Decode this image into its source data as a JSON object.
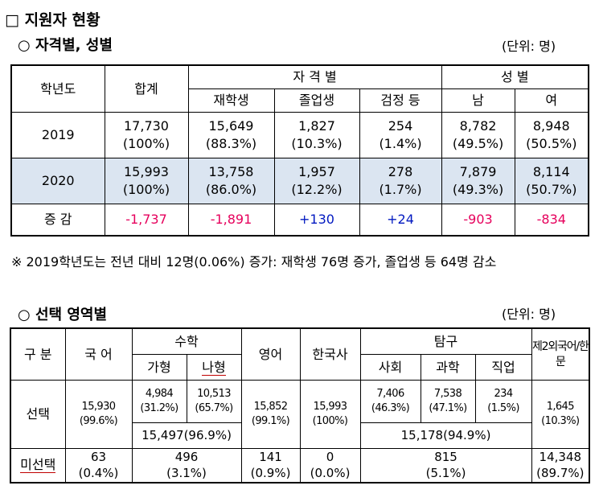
{
  "section_title": "□ 지원자 현황",
  "part1": {
    "heading": "○  자격별, 성별",
    "unit": "(단위: 명)",
    "headers": {
      "year": "학년도",
      "total": "합계",
      "qual_group": "자 격 별",
      "enrolled": "재학생",
      "graduate": "졸업생",
      "ged": "검정 등",
      "gender_group": "성 별",
      "male": "남",
      "female": "여"
    },
    "rows": [
      {
        "year": "2019",
        "total": "17,730",
        "total_pct": "(100%)",
        "enrolled": "15,649",
        "enrolled_pct": "(88.3%)",
        "graduate": "1,827",
        "graduate_pct": "(10.3%)",
        "ged": "254",
        "ged_pct": "(1.4%)",
        "male": "8,782",
        "male_pct": "(49.5%)",
        "female": "8,948",
        "female_pct": "(50.5%)"
      },
      {
        "year": "2020",
        "total": "15,993",
        "total_pct": "(100%)",
        "enrolled": "13,758",
        "enrolled_pct": "(86.0%)",
        "graduate": "1,957",
        "graduate_pct": "(12.2%)",
        "ged": "278",
        "ged_pct": "(1.7%)",
        "male": "7,879",
        "male_pct": "(49.3%)",
        "female": "8,114",
        "female_pct": "(50.7%)"
      }
    ],
    "diff": {
      "label": "증 감",
      "total": "-1,737",
      "enrolled": "-1,891",
      "graduate": "+130",
      "ged": "+24",
      "male": "-903",
      "female": "-834"
    },
    "note": "※ 2019학년도는 전년 대비 12명(0.06%) 증가: 재학생 76명 증가, 졸업생 등 64명 감소",
    "colors": {
      "highlight_row": "#dbe5f1",
      "negative": "#e6005c",
      "positive": "#0018c0"
    }
  },
  "part2": {
    "heading": "○  선택 영역별",
    "unit": "(단위: 명)",
    "headers": {
      "category": "구 분",
      "korean": "국 어",
      "math": "수학",
      "math_ga": "가형",
      "math_na": "나형",
      "english": "영어",
      "history": "한국사",
      "inquiry": "탐구",
      "social": "사회",
      "science": "과학",
      "vocational": "직업",
      "foreign": "제2외국어/한문"
    },
    "selected": {
      "label": "선택",
      "korean": "15,930",
      "korean_pct": "(99.6%)",
      "math_ga": "4,984",
      "math_ga_pct": "(31.2%)",
      "math_na": "10,513",
      "math_na_pct": "(65.7%)",
      "math_total": "15,497(96.9%)",
      "english": "15,852",
      "english_pct": "(99.1%)",
      "history": "15,993",
      "history_pct": "(100%)",
      "social": "7,406",
      "social_pct": "(46.3%)",
      "science": "7,538",
      "science_pct": "(47.1%)",
      "vocational": "234",
      "vocational_pct": "(1.5%)",
      "inquiry_total": "15,178(94.9%)",
      "foreign": "1,645",
      "foreign_pct": "(10.3%)"
    },
    "unselected": {
      "label": "미선택",
      "korean": "63",
      "korean_pct": "(0.4%)",
      "math": "496",
      "math_pct": "(3.1%)",
      "english": "141",
      "english_pct": "(0.9%)",
      "history": "0",
      "history_pct": "(0.0%)",
      "inquiry": "815",
      "inquiry_pct": "(5.1%)",
      "foreign": "14,348",
      "foreign_pct": "(89.7%)"
    }
  }
}
